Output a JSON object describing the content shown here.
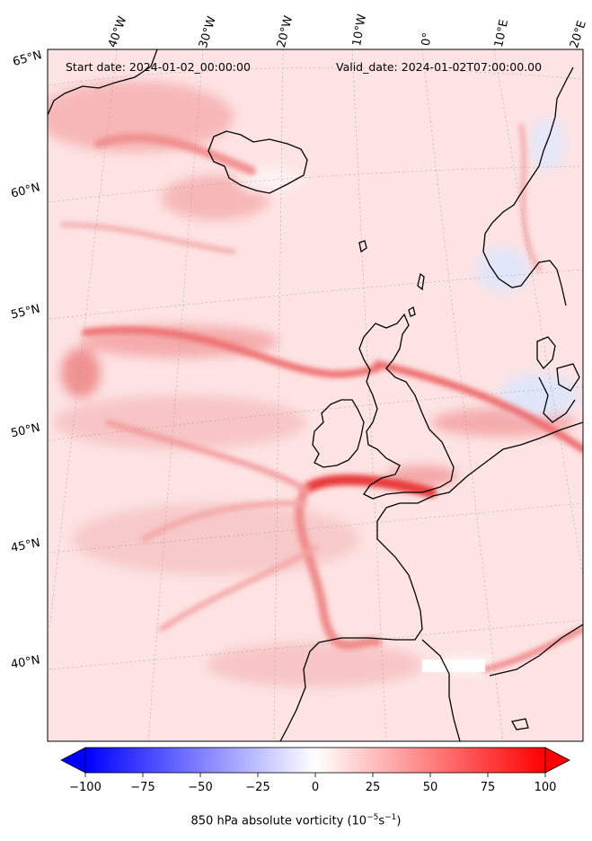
{
  "map": {
    "start_label": "Start date: 2024-01-02_00:00:00",
    "valid_label": "Valid_date: 2024-01-02T07:00:00.00",
    "lon_labels": [
      "40°W",
      "30°W",
      "20°W",
      "10°W",
      "0°",
      "10°E",
      "20°E"
    ],
    "lat_labels": [
      "65°N",
      "60°N",
      "55°N",
      "50°N",
      "45°N",
      "40°N"
    ]
  },
  "colorbar": {
    "min": -100,
    "max": 100,
    "ticks": [
      "−100",
      "−75",
      "−50",
      "−25",
      "0",
      "25",
      "50",
      "75",
      "100"
    ],
    "tick_values": [
      -100,
      -75,
      -50,
      -25,
      0,
      25,
      50,
      75,
      100
    ],
    "label_text": "850 hPa absolute vorticity (10",
    "label_exp1": "−5",
    "label_mid": "s",
    "label_exp2": "−1",
    "label_end": ")",
    "colors": {
      "negative": "#0000ff",
      "zero": "#ffffff",
      "positive": "#ff0000"
    }
  }
}
